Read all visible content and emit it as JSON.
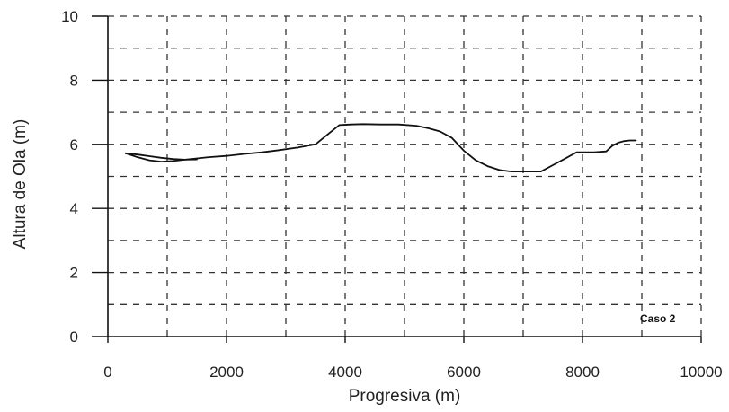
{
  "chart_data": {
    "type": "line",
    "title": "",
    "xlabel": "Progresiva (m)",
    "ylabel": "Altura de Ola (m)",
    "xlim": [
      0,
      10000
    ],
    "ylim": [
      0,
      10
    ],
    "x_ticks": [
      0,
      2000,
      4000,
      6000,
      8000,
      10000
    ],
    "x_tick_labels": [
      "0",
      "2000",
      "4000",
      "6000",
      "8000",
      "10000"
    ],
    "y_ticks": [
      0,
      2,
      4,
      6,
      8,
      10
    ],
    "y_tick_labels": [
      "0",
      "2",
      "4",
      "6",
      "8",
      "10"
    ],
    "x_grid_step": 1000,
    "y_grid_step": 1,
    "grid": true,
    "annotation": "Caso 2",
    "series": [
      {
        "x": [
          300,
          500,
          700,
          900,
          1100,
          1300,
          1500,
          1700,
          2000,
          2300,
          2600,
          2900,
          3200,
          3500,
          3700,
          3900,
          4100,
          4300,
          4600,
          4900,
          5200,
          5400,
          5600,
          5800,
          6000,
          6200,
          6400,
          6600,
          6800,
          7000,
          7300,
          7500,
          7700,
          7900,
          8200,
          8400,
          8500,
          8600,
          8700,
          8800,
          8900
        ],
        "y": [
          5.72,
          5.6,
          5.5,
          5.46,
          5.48,
          5.52,
          5.56,
          5.6,
          5.64,
          5.7,
          5.75,
          5.82,
          5.9,
          6.0,
          6.3,
          6.6,
          6.62,
          6.63,
          6.62,
          6.62,
          6.58,
          6.5,
          6.4,
          6.2,
          5.8,
          5.5,
          5.32,
          5.2,
          5.15,
          5.15,
          5.15,
          5.35,
          5.55,
          5.75,
          5.75,
          5.78,
          5.95,
          6.05,
          6.1,
          6.12,
          6.12
        ],
        "color": "#111111"
      },
      {
        "x": [
          300,
          500,
          700,
          900,
          1100,
          1300,
          1500
        ],
        "y": [
          5.72,
          5.68,
          5.63,
          5.58,
          5.54,
          5.52,
          5.53
        ],
        "color": "#111111"
      }
    ]
  }
}
